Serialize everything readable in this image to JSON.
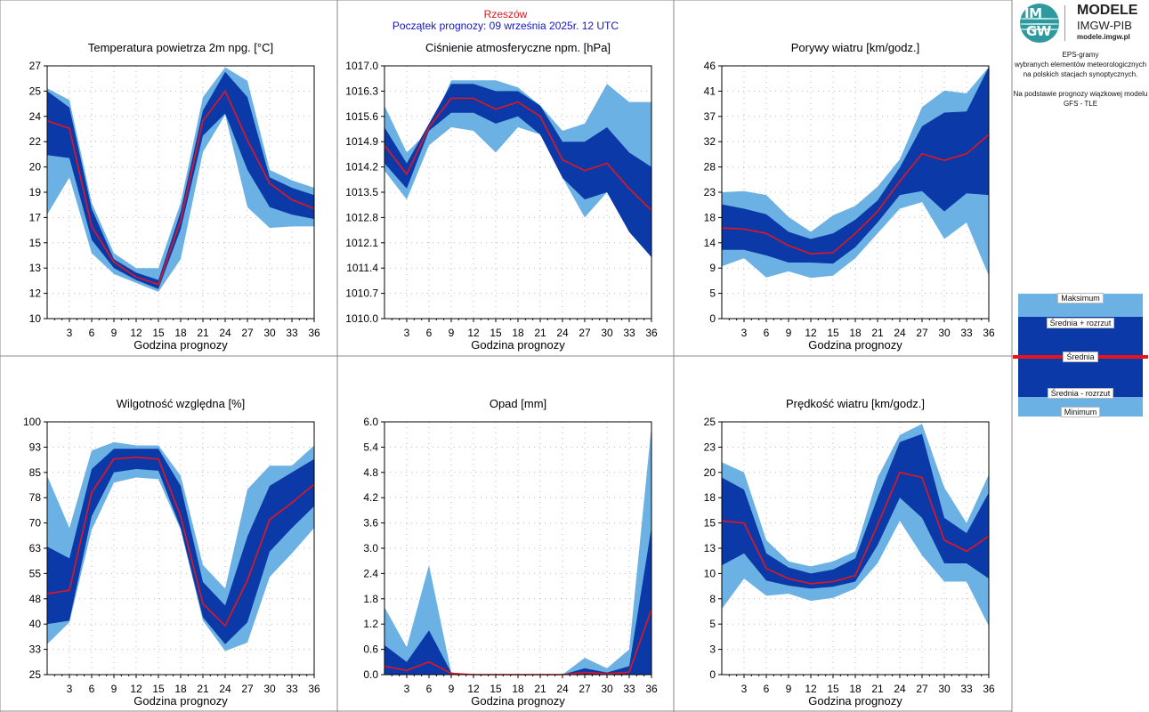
{
  "header": {
    "station": "Rzeszów",
    "forecast_start": "Początek prognozy: 09 września 2025r. 12 UTC"
  },
  "branding": {
    "logo_line1": "IM",
    "logo_line2": "GW",
    "title": "MODELE",
    "subtitle": "IMGW-PIB",
    "url": "modele.imgw.pl"
  },
  "info": {
    "line1": "EPS-gramy",
    "line2": "wybranych elementów meteorologicznych",
    "line3": "na polskich stacjach  synoptycznych.",
    "line4": "Na podstawie prognozy wiązkowej modelu",
    "line5": "GFS - TLE"
  },
  "legend": {
    "max": "Maksimum",
    "mean_plus": "Średnia + rozrzut",
    "mean": "Średnia",
    "mean_minus": "Średnia - rozrzut",
    "min": "Minimum"
  },
  "colors": {
    "outer_band": "#6cb1e4",
    "inner_band": "#0b3aa8",
    "mean_line": "#e8141c",
    "grid_dots": "#b9b9b9"
  },
  "chart_data": [
    {
      "type": "area",
      "title": "Temperatura powietrza 2m npg. [°C]",
      "xlabel": "Godzina prognozy",
      "x": [
        0,
        3,
        6,
        9,
        12,
        15,
        18,
        21,
        24,
        27,
        30,
        33,
        36
      ],
      "xticks": [
        "3",
        "6",
        "9",
        "12",
        "15",
        "18",
        "21",
        "24",
        "27",
        "30",
        "33",
        "36"
      ],
      "ylim": [
        10,
        27
      ],
      "yticks": [
        "10",
        "12",
        "13",
        "15",
        "17",
        "19",
        "20",
        "22",
        "24",
        "25",
        "27"
      ],
      "max": [
        25.5,
        24.7,
        17.8,
        14.4,
        13.4,
        13.4,
        17.8,
        24.9,
        26.9,
        26.0,
        20.0,
        19.3,
        18.8
      ],
      "mean_plus": [
        25.3,
        24.2,
        17.4,
        14.0,
        13.1,
        12.6,
        17.2,
        24.0,
        26.6,
        24.9,
        19.5,
        18.8,
        18.3
      ],
      "mean": [
        23.3,
        22.8,
        16.2,
        13.8,
        12.8,
        12.3,
        16.6,
        23.3,
        25.3,
        22.0,
        19.1,
        18.0,
        17.4
      ],
      "mean_minus": [
        21.0,
        20.8,
        15.3,
        13.4,
        12.6,
        12.0,
        16.0,
        22.3,
        23.8,
        20.0,
        17.5,
        17.0,
        16.7
      ],
      "min": [
        17.0,
        19.5,
        14.4,
        13.0,
        12.4,
        11.8,
        14.0,
        21.2,
        23.7,
        17.5,
        16.1,
        16.2,
        16.2
      ]
    },
    {
      "type": "area",
      "title": "Ciśnienie atmosferyczne npm. [hPa]",
      "xlabel": "Godzina prognozy",
      "x": [
        0,
        3,
        6,
        9,
        12,
        15,
        18,
        21,
        24,
        27,
        30,
        33,
        36
      ],
      "xticks": [
        "3",
        "6",
        "9",
        "12",
        "15",
        "18",
        "21",
        "24",
        "27",
        "30",
        "33",
        "36"
      ],
      "ylim": [
        1010.0,
        1017.0
      ],
      "yticks": [
        "1010.0",
        "1010.7",
        "1011.4",
        "1012.1",
        "1012.8",
        "1013.5",
        "1014.2",
        "1014.9",
        "1015.6",
        "1016.3",
        "1017.0"
      ],
      "max": [
        1015.9,
        1014.6,
        1015.2,
        1016.6,
        1016.6,
        1016.6,
        1016.4,
        1015.9,
        1015.2,
        1015.4,
        1016.5,
        1016.0,
        1016.0
      ],
      "mean_plus": [
        1015.3,
        1014.3,
        1015.4,
        1016.5,
        1016.5,
        1016.3,
        1016.3,
        1015.9,
        1014.9,
        1014.9,
        1015.3,
        1014.6,
        1014.2
      ],
      "mean": [
        1014.8,
        1014.0,
        1015.3,
        1016.1,
        1016.1,
        1015.8,
        1016.0,
        1015.6,
        1014.4,
        1014.1,
        1014.3,
        1013.6,
        1013.0
      ],
      "mean_minus": [
        1014.3,
        1013.6,
        1015.2,
        1015.7,
        1015.7,
        1015.4,
        1015.6,
        1015.1,
        1013.9,
        1013.3,
        1013.5,
        1012.4,
        1011.7
      ],
      "min": [
        1014.1,
        1013.3,
        1014.8,
        1015.3,
        1015.2,
        1014.6,
        1015.3,
        1015.1,
        1013.9,
        1012.8,
        1013.5,
        1012.4,
        1011.7
      ]
    },
    {
      "type": "area",
      "title": "Porywy wiatru [km/godz.]",
      "xlabel": "Godzina prognozy",
      "x": [
        0,
        3,
        6,
        9,
        12,
        15,
        18,
        21,
        24,
        27,
        30,
        33,
        36
      ],
      "xticks": [
        "3",
        "6",
        "9",
        "12",
        "15",
        "18",
        "21",
        "24",
        "27",
        "30",
        "33",
        "36"
      ],
      "ylim": [
        0,
        46
      ],
      "yticks": [
        "0",
        "5",
        "9",
        "14",
        "18",
        "23",
        "28",
        "32",
        "37",
        "41",
        "46"
      ],
      "max": [
        23.0,
        23.2,
        22.5,
        18.5,
        15.8,
        18.8,
        20.5,
        24.0,
        29.0,
        38.5,
        41.5,
        41.0,
        45.8
      ],
      "mean_plus": [
        20.8,
        20.0,
        19.0,
        15.8,
        14.5,
        15.5,
        18.0,
        21.5,
        27.5,
        35.0,
        37.5,
        37.7,
        45.8
      ],
      "mean": [
        16.5,
        16.3,
        15.5,
        13.3,
        11.8,
        12.0,
        15.5,
        19.5,
        25.0,
        30.0,
        28.8,
        30.0,
        33.5
      ],
      "mean_minus": [
        12.5,
        12.5,
        11.5,
        10.2,
        10.2,
        10.0,
        13.0,
        17.5,
        22.5,
        23.2,
        19.5,
        22.8,
        22.5
      ],
      "min": [
        9.5,
        11.0,
        7.5,
        8.6,
        7.4,
        7.8,
        11.0,
        15.5,
        20.0,
        21.2,
        14.5,
        17.5,
        7.8
      ]
    },
    {
      "type": "area",
      "title": "Wilgotność względna [%]",
      "xlabel": "Godzina prognozy",
      "x": [
        0,
        3,
        6,
        9,
        12,
        15,
        18,
        21,
        24,
        27,
        30,
        33,
        36
      ],
      "xticks": [
        "3",
        "6",
        "9",
        "12",
        "15",
        "18",
        "21",
        "24",
        "27",
        "30",
        "33",
        "36"
      ],
      "ylim": [
        25,
        100
      ],
      "yticks": [
        "25",
        "33",
        "40",
        "48",
        "55",
        "63",
        "70",
        "78",
        "85",
        "93",
        "100"
      ],
      "max": [
        84.0,
        68.5,
        91.5,
        94.0,
        93.0,
        93.0,
        84.0,
        57.5,
        50.5,
        80.0,
        87.0,
        87.0,
        93.0
      ],
      "mean_plus": [
        63.0,
        59.5,
        86.0,
        92.0,
        92.0,
        92.0,
        81.0,
        52.5,
        45.5,
        66.0,
        81.0,
        85.0,
        89.0
      ],
      "mean": [
        49.0,
        50.0,
        79.0,
        89.0,
        89.5,
        89.0,
        72.0,
        46.0,
        39.5,
        53.0,
        71.0,
        76.0,
        81.5
      ],
      "mean_minus": [
        40.0,
        41.0,
        72.0,
        85.0,
        86.0,
        85.5,
        68.5,
        42.0,
        34.0,
        40.5,
        61.5,
        68.5,
        75.0
      ],
      "min": [
        34.0,
        40.5,
        68.0,
        82.0,
        83.5,
        83.0,
        68.0,
        41.0,
        32.0,
        34.5,
        54.0,
        61.0,
        68.5
      ]
    },
    {
      "type": "area",
      "title": "Opad [mm]",
      "xlabel": "Godzina prognozy",
      "x": [
        0,
        3,
        6,
        9,
        12,
        15,
        18,
        21,
        24,
        27,
        30,
        33,
        36
      ],
      "xticks": [
        "3",
        "6",
        "9",
        "12",
        "15",
        "18",
        "21",
        "24",
        "27",
        "30",
        "33",
        "36"
      ],
      "ylim": [
        0,
        6
      ],
      "yticks": [
        "0.0",
        "0.6",
        "1.2",
        "1.8",
        "2.4",
        "3.0",
        "3.6",
        "4.2",
        "4.8",
        "5.4",
        "6.0"
      ],
      "max": [
        1.6,
        0.65,
        2.6,
        0.05,
        0.0,
        0.0,
        0.0,
        0.0,
        0.0,
        0.4,
        0.15,
        0.6,
        5.9
      ],
      "mean_plus": [
        0.7,
        0.3,
        1.05,
        0.05,
        0.0,
        0.0,
        0.0,
        0.0,
        0.0,
        0.15,
        0.05,
        0.2,
        3.5
      ],
      "mean": [
        0.2,
        0.1,
        0.3,
        0.03,
        0.0,
        0.0,
        0.0,
        0.0,
        0.0,
        0.05,
        0.02,
        0.06,
        1.55
      ],
      "mean_minus": [
        0.0,
        0.0,
        0.0,
        0.0,
        0.0,
        0.0,
        0.0,
        0.0,
        0.0,
        0.0,
        0.0,
        0.0,
        0.0
      ],
      "min": [
        0.0,
        0.0,
        0.0,
        0.0,
        0.0,
        0.0,
        0.0,
        0.0,
        0.0,
        0.0,
        0.0,
        0.0,
        0.0
      ]
    },
    {
      "type": "area",
      "title": "Prędkość wiatru [km/godz.]",
      "xlabel": "Godzina prognozy",
      "x": [
        0,
        3,
        6,
        9,
        12,
        15,
        18,
        21,
        24,
        27,
        30,
        33,
        36
      ],
      "xticks": [
        "3",
        "6",
        "9",
        "12",
        "15",
        "18",
        "21",
        "24",
        "27",
        "30",
        "33",
        "36"
      ],
      "ylim": [
        0,
        25
      ],
      "yticks": [
        "0",
        "3",
        "5",
        "8",
        "10",
        "13",
        "15",
        "18",
        "20",
        "23",
        "25"
      ],
      "max": [
        21.0,
        20.0,
        13.3,
        11.2,
        10.7,
        11.2,
        12.2,
        19.5,
        23.7,
        24.8,
        18.5,
        15.0,
        19.8
      ],
      "mean_plus": [
        19.5,
        18.3,
        12.0,
        10.6,
        10.0,
        10.4,
        11.5,
        17.5,
        23.0,
        23.8,
        15.5,
        14.0,
        18.0
      ],
      "mean": [
        15.2,
        15.0,
        10.5,
        9.5,
        9.0,
        9.2,
        9.8,
        14.8,
        20.0,
        19.5,
        13.3,
        12.2,
        13.7
      ],
      "mean_minus": [
        10.8,
        12.0,
        9.3,
        8.8,
        8.5,
        8.7,
        9.2,
        12.8,
        17.5,
        15.5,
        11.0,
        11.0,
        9.5
      ],
      "min": [
        6.5,
        9.5,
        7.8,
        8.0,
        7.3,
        7.6,
        8.5,
        11.0,
        15.2,
        11.8,
        9.2,
        9.2,
        4.8
      ]
    }
  ]
}
